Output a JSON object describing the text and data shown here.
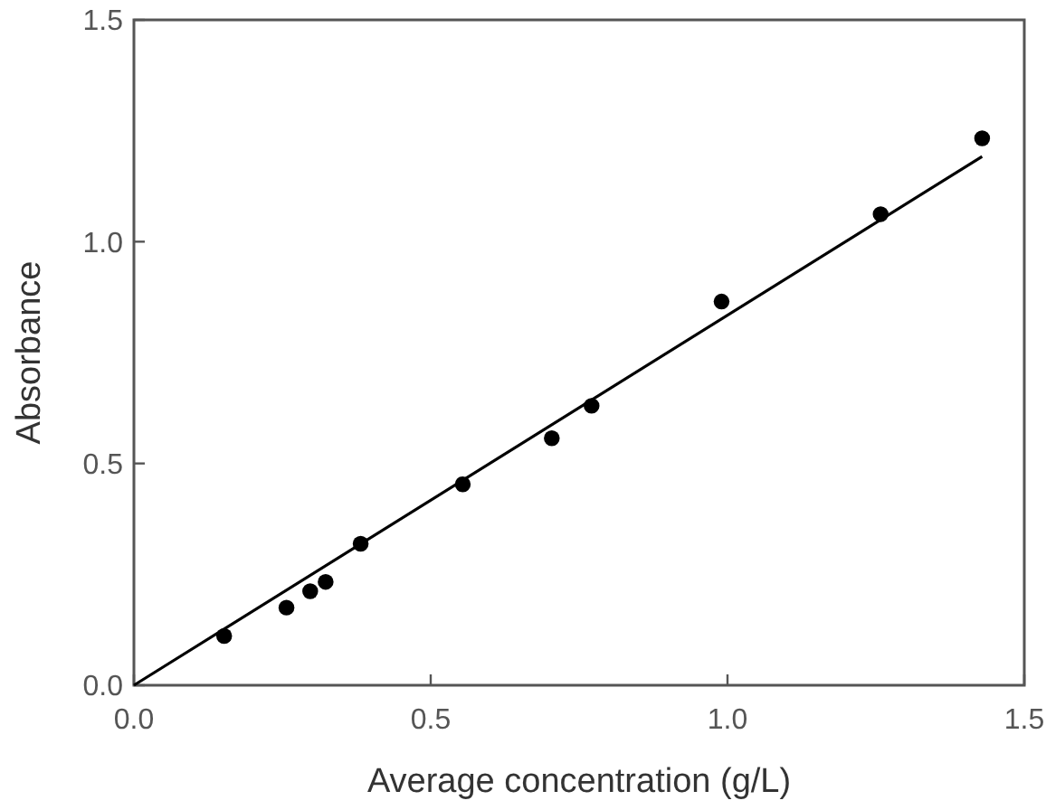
{
  "chart_data": {
    "type": "scatter",
    "xlabel": "Average concentration (g/L)",
    "ylabel": "Absorbance",
    "x": [
      0.152,
      0.257,
      0.297,
      0.323,
      0.382,
      0.554,
      0.704,
      0.771,
      0.99,
      1.258,
      1.429
    ],
    "series": [
      {
        "marker": "circle",
        "color": "#000000",
        "values": [
          0.111,
          0.175,
          0.212,
          0.233,
          0.319,
          0.453,
          0.557,
          0.63,
          0.865,
          1.062,
          1.233
        ]
      },
      {
        "type": "line",
        "color": "#000000",
        "x": [
          0,
          1.429
        ],
        "values": [
          0,
          1.192
        ]
      }
    ],
    "xlim": [
      0,
      1.5
    ],
    "ylim": [
      0,
      1.5
    ],
    "xticks": [
      {
        "value": 0,
        "label": "0.0"
      },
      {
        "value": 0.5,
        "label": "0.5"
      },
      {
        "value": 1,
        "label": "1.0"
      },
      {
        "value": 1.5,
        "label": "1.5"
      }
    ],
    "yticks": [
      {
        "value": 0,
        "label": "0.0"
      },
      {
        "value": 0.5,
        "label": "0.5"
      },
      {
        "value": 1,
        "label": "1.0"
      },
      {
        "value": 1.5,
        "label": "1.5"
      }
    ],
    "grid": false
  }
}
